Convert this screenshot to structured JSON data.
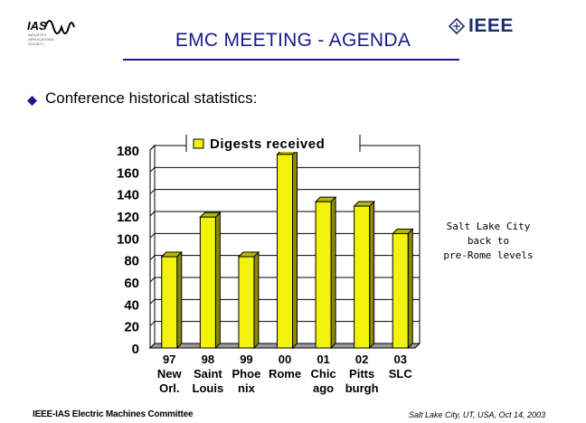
{
  "header": {
    "title": "EMC MEETING  -  AGENDA",
    "ias_logo_text": "IAS",
    "ias_logo_caption": [
      "INDUSTRY",
      "APPLICATIONS",
      "SOCIETY"
    ],
    "ieee_logo_text": "IEEE"
  },
  "content": {
    "bullet_text": "Conference historical statistics:"
  },
  "chart_data": {
    "type": "bar",
    "title": "Digests received",
    "categories": [
      [
        "97",
        "New",
        "Orl."
      ],
      [
        "98",
        "Saint",
        "Louis"
      ],
      [
        "99",
        "Phoe",
        "nix"
      ],
      [
        "00",
        "Rome",
        ""
      ],
      [
        "01",
        "Chic",
        "ago"
      ],
      [
        "02",
        "Pitts",
        "burgh"
      ],
      [
        "03",
        "SLC",
        ""
      ]
    ],
    "values": [
      83,
      119,
      83,
      176,
      133,
      129,
      104
    ],
    "ylim": [
      0,
      180
    ],
    "yticks": [
      "0",
      "20",
      "40",
      "60",
      "80",
      "100",
      "120",
      "140",
      "160",
      "180"
    ],
    "grid": true,
    "legend": "top",
    "bar_color": "#f2f20a"
  },
  "annotation": {
    "lines": [
      "Salt Lake City",
      "back to",
      "pre-Rome levels"
    ]
  },
  "footer": {
    "left": "IEEE-IAS Electric Machines Committee",
    "right": "Salt Lake City, UT, USA, Oct 14, 2003"
  }
}
